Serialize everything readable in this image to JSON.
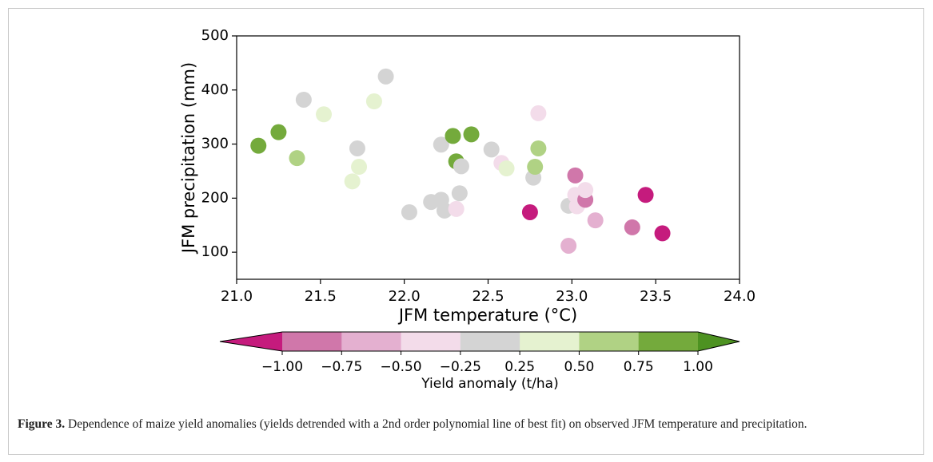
{
  "chart_data": {
    "type": "scatter",
    "xlabel": "JFM temperature (°C)",
    "ylabel": "JFM precipitation (mm)",
    "x": [
      21.13,
      21.25,
      21.36,
      21.4,
      21.52,
      21.69,
      21.72,
      21.73,
      21.82,
      21.89,
      22.03,
      22.16,
      22.22,
      22.22,
      22.24,
      22.29,
      22.31,
      22.31,
      22.33,
      22.34,
      22.4,
      22.52,
      22.58,
      22.61,
      22.75,
      22.77,
      22.78,
      22.8,
      22.8,
      22.98,
      22.98,
      23.02,
      23.02,
      23.03,
      23.08,
      23.08,
      23.14,
      23.36,
      23.44,
      23.54
    ],
    "y": [
      297,
      322,
      274,
      382,
      355,
      231,
      292,
      258,
      379,
      425,
      174,
      193,
      197,
      299,
      177,
      315,
      180,
      268,
      209,
      259,
      318,
      290,
      265,
      255,
      174,
      238,
      258,
      292,
      357,
      186,
      112,
      242,
      206,
      185,
      197,
      215,
      159,
      146,
      206,
      135
    ],
    "colors": [
      "#74aa3c",
      "#74aa3c",
      "#b0d284",
      "#d4d4d4",
      "#e5f2d0",
      "#e5f2d0",
      "#d4d4d4",
      "#e5f2d0",
      "#e5f2d0",
      "#d4d4d4",
      "#d4d4d4",
      "#d4d4d4",
      "#d4d4d4",
      "#d4d4d4",
      "#d4d4d4",
      "#74aa3c",
      "#f3dcea",
      "#74aa3c",
      "#d4d4d4",
      "#d4d4d4",
      "#74aa3c",
      "#d4d4d4",
      "#f3dcea",
      "#e5f2d0",
      "#c51b7d",
      "#d4d4d4",
      "#b0d284",
      "#b0d284",
      "#f3dcea",
      "#d4d4d4",
      "#e4b0d0",
      "#d077aa",
      "#f3dcea",
      "#f3dcea",
      "#d077aa",
      "#f3dcea",
      "#e4b0d0",
      "#d077aa",
      "#c51b7d",
      "#c51b7d"
    ],
    "xlim": [
      21,
      24
    ],
    "ylim": [
      50,
      500
    ],
    "xticks": [
      {
        "value": 21,
        "label": "21.0"
      },
      {
        "value": 21.5,
        "label": "21.5"
      },
      {
        "value": 22,
        "label": "22.0"
      },
      {
        "value": 22.5,
        "label": "22.5"
      },
      {
        "value": 23,
        "label": "23.0"
      },
      {
        "value": 23.5,
        "label": "23.5"
      },
      {
        "value": 24,
        "label": "24.0"
      }
    ],
    "yticks": [
      100,
      200,
      300,
      400,
      500
    ],
    "colorbar": {
      "label": "Yield anomaly (t/ha)",
      "ticks": [
        {
          "value": -1,
          "label": "−1.00"
        },
        {
          "value": -0.75,
          "label": "−0.75"
        },
        {
          "value": -0.5,
          "label": "−0.50"
        },
        {
          "value": -0.25,
          "label": "−0.25"
        },
        {
          "value": 0.25,
          "label": "0.25"
        },
        {
          "value": 0.5,
          "label": "0.50"
        },
        {
          "value": 0.75,
          "label": "0.75"
        },
        {
          "value": 1,
          "label": "1.00"
        }
      ],
      "colors": [
        "#d077aa",
        "#e4b0d0",
        "#f3dcea",
        "#d4d4d4",
        "#e5f2d0",
        "#b0d284",
        "#74aa3c"
      ],
      "extend_colors": [
        "#c51b7d",
        "#4d9221"
      ]
    }
  },
  "caption": {
    "label": "Figure 3.",
    "text": "Dependence of maize yield anomalies (yields detrended with a 2nd order polynomial line of best fit) on observed JFM temperature and precipitation."
  }
}
